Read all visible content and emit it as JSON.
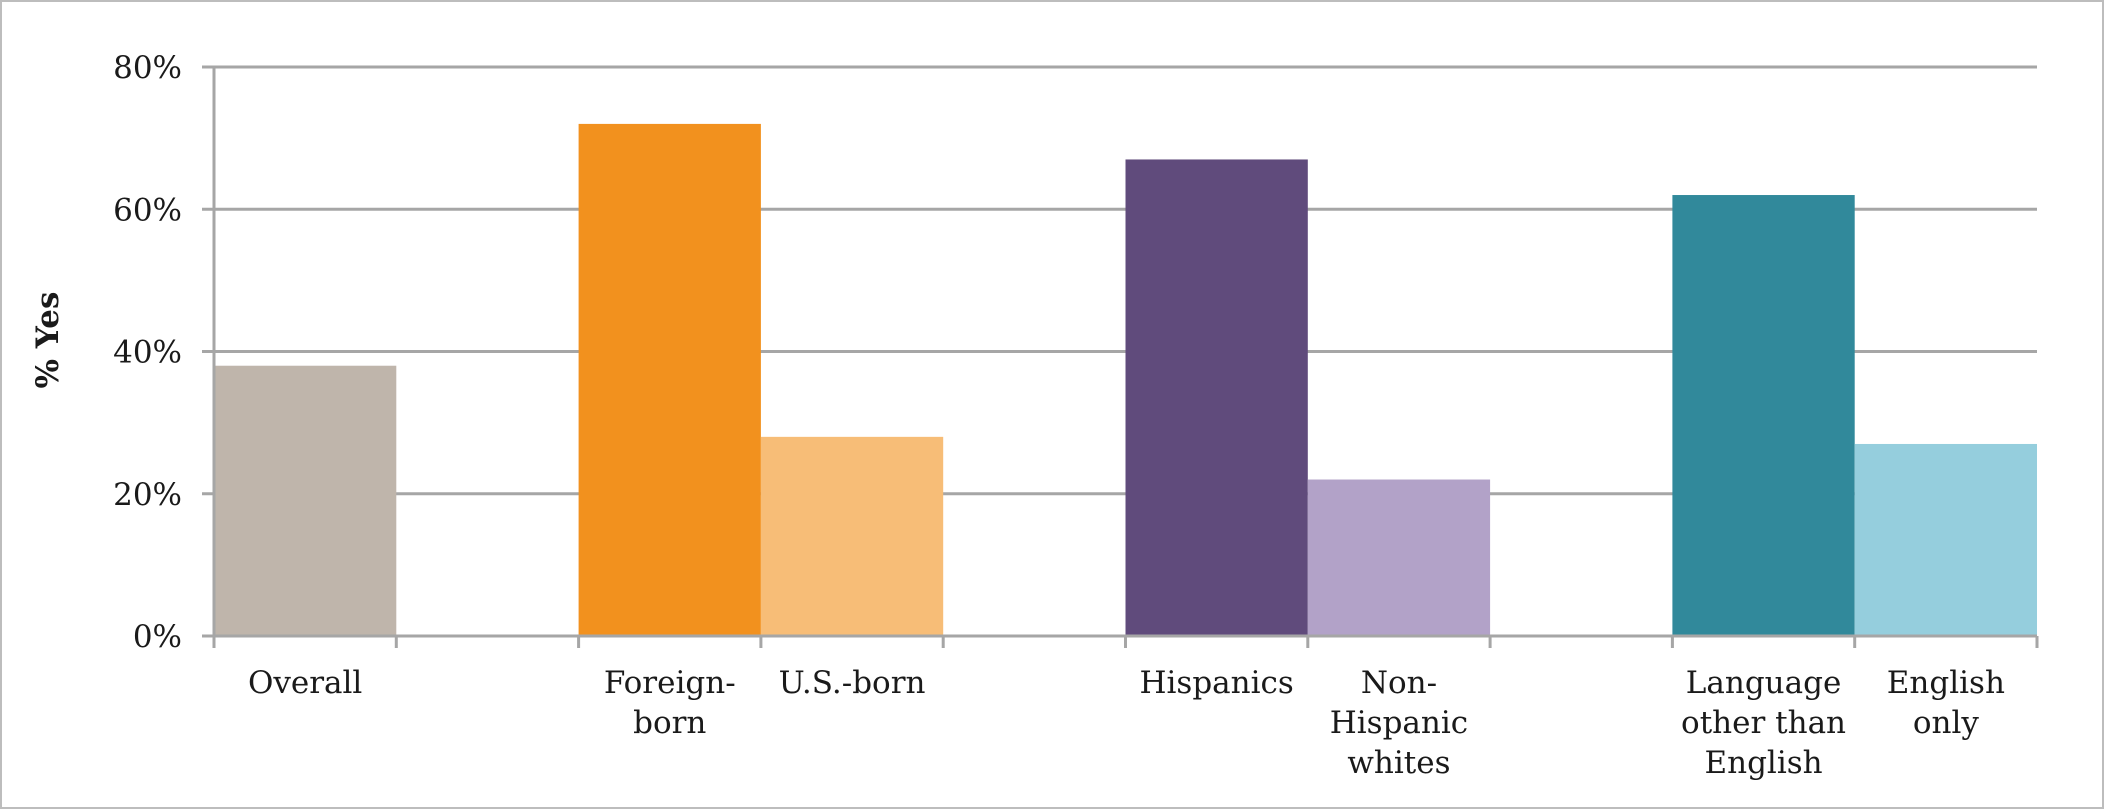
{
  "chart_data": {
    "type": "bar",
    "title": "",
    "xlabel": "",
    "ylabel": "% Yes",
    "ylim": [
      0,
      80
    ],
    "yticks": [
      0,
      20,
      40,
      60,
      80
    ],
    "ytick_labels": [
      "0%",
      "20%",
      "40%",
      "60%",
      "80%"
    ],
    "grid": true,
    "legend": "none",
    "categories": [
      "Overall",
      "",
      "Foreign-born",
      "U.S.-born",
      "",
      "Hispanics",
      "Non-Hispanic whites",
      "",
      "Language other than English",
      "English only"
    ],
    "category_label_lines": [
      [
        "Overall"
      ],
      [],
      [
        "Foreign-",
        "born"
      ],
      [
        "U.S.-born"
      ],
      [],
      [
        "Hispanics"
      ],
      [
        "Non-",
        "Hispanic",
        "whites"
      ],
      [],
      [
        "Language",
        "other than",
        "English"
      ],
      [
        "English",
        "only"
      ]
    ],
    "values": [
      38,
      null,
      72,
      28,
      null,
      67,
      22,
      null,
      62,
      27
    ],
    "colors": [
      "#bfb5ab",
      "",
      "#f2911e",
      "#f7bd77",
      "",
      "#604b7c",
      "#b2a2c8",
      "",
      "#31899b",
      "#95cedd"
    ]
  }
}
